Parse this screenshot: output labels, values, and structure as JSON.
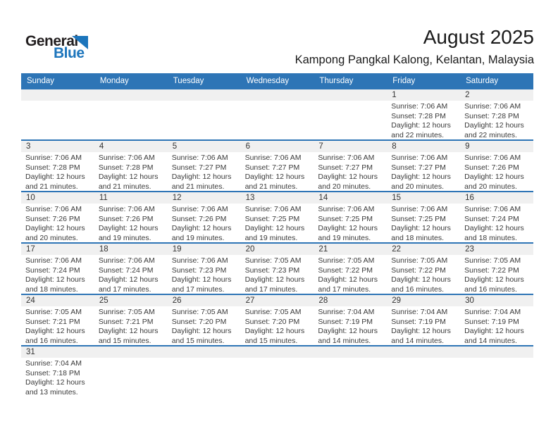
{
  "logo": {
    "general": "General",
    "blue": "Blue"
  },
  "header": {
    "title": "August 2025",
    "subtitle": "Kampong Pangkal Kalong, Kelantan, Malaysia"
  },
  "colors": {
    "accent_blue": "#2e75b6",
    "logo_blue": "#1c75bc",
    "band_gray": "#f0f0f0"
  },
  "calendar": {
    "day_headers": [
      "Sunday",
      "Monday",
      "Tuesday",
      "Wednesday",
      "Thursday",
      "Friday",
      "Saturday"
    ],
    "weeks": [
      [
        null,
        null,
        null,
        null,
        null,
        {
          "day": "1",
          "lines": [
            "Sunrise: 7:06 AM",
            "Sunset: 7:28 PM",
            "Daylight: 12 hours",
            "and 22 minutes."
          ]
        },
        {
          "day": "2",
          "lines": [
            "Sunrise: 7:06 AM",
            "Sunset: 7:28 PM",
            "Daylight: 12 hours",
            "and 22 minutes."
          ]
        }
      ],
      [
        {
          "day": "3",
          "lines": [
            "Sunrise: 7:06 AM",
            "Sunset: 7:28 PM",
            "Daylight: 12 hours",
            "and 21 minutes."
          ]
        },
        {
          "day": "4",
          "lines": [
            "Sunrise: 7:06 AM",
            "Sunset: 7:28 PM",
            "Daylight: 12 hours",
            "and 21 minutes."
          ]
        },
        {
          "day": "5",
          "lines": [
            "Sunrise: 7:06 AM",
            "Sunset: 7:27 PM",
            "Daylight: 12 hours",
            "and 21 minutes."
          ]
        },
        {
          "day": "6",
          "lines": [
            "Sunrise: 7:06 AM",
            "Sunset: 7:27 PM",
            "Daylight: 12 hours",
            "and 21 minutes."
          ]
        },
        {
          "day": "7",
          "lines": [
            "Sunrise: 7:06 AM",
            "Sunset: 7:27 PM",
            "Daylight: 12 hours",
            "and 20 minutes."
          ]
        },
        {
          "day": "8",
          "lines": [
            "Sunrise: 7:06 AM",
            "Sunset: 7:27 PM",
            "Daylight: 12 hours",
            "and 20 minutes."
          ]
        },
        {
          "day": "9",
          "lines": [
            "Sunrise: 7:06 AM",
            "Sunset: 7:26 PM",
            "Daylight: 12 hours",
            "and 20 minutes."
          ]
        }
      ],
      [
        {
          "day": "10",
          "lines": [
            "Sunrise: 7:06 AM",
            "Sunset: 7:26 PM",
            "Daylight: 12 hours",
            "and 20 minutes."
          ]
        },
        {
          "day": "11",
          "lines": [
            "Sunrise: 7:06 AM",
            "Sunset: 7:26 PM",
            "Daylight: 12 hours",
            "and 19 minutes."
          ]
        },
        {
          "day": "12",
          "lines": [
            "Sunrise: 7:06 AM",
            "Sunset: 7:26 PM",
            "Daylight: 12 hours",
            "and 19 minutes."
          ]
        },
        {
          "day": "13",
          "lines": [
            "Sunrise: 7:06 AM",
            "Sunset: 7:25 PM",
            "Daylight: 12 hours",
            "and 19 minutes."
          ]
        },
        {
          "day": "14",
          "lines": [
            "Sunrise: 7:06 AM",
            "Sunset: 7:25 PM",
            "Daylight: 12 hours",
            "and 19 minutes."
          ]
        },
        {
          "day": "15",
          "lines": [
            "Sunrise: 7:06 AM",
            "Sunset: 7:25 PM",
            "Daylight: 12 hours",
            "and 18 minutes."
          ]
        },
        {
          "day": "16",
          "lines": [
            "Sunrise: 7:06 AM",
            "Sunset: 7:24 PM",
            "Daylight: 12 hours",
            "and 18 minutes."
          ]
        }
      ],
      [
        {
          "day": "17",
          "lines": [
            "Sunrise: 7:06 AM",
            "Sunset: 7:24 PM",
            "Daylight: 12 hours",
            "and 18 minutes."
          ]
        },
        {
          "day": "18",
          "lines": [
            "Sunrise: 7:06 AM",
            "Sunset: 7:24 PM",
            "Daylight: 12 hours",
            "and 17 minutes."
          ]
        },
        {
          "day": "19",
          "lines": [
            "Sunrise: 7:06 AM",
            "Sunset: 7:23 PM",
            "Daylight: 12 hours",
            "and 17 minutes."
          ]
        },
        {
          "day": "20",
          "lines": [
            "Sunrise: 7:05 AM",
            "Sunset: 7:23 PM",
            "Daylight: 12 hours",
            "and 17 minutes."
          ]
        },
        {
          "day": "21",
          "lines": [
            "Sunrise: 7:05 AM",
            "Sunset: 7:22 PM",
            "Daylight: 12 hours",
            "and 17 minutes."
          ]
        },
        {
          "day": "22",
          "lines": [
            "Sunrise: 7:05 AM",
            "Sunset: 7:22 PM",
            "Daylight: 12 hours",
            "and 16 minutes."
          ]
        },
        {
          "day": "23",
          "lines": [
            "Sunrise: 7:05 AM",
            "Sunset: 7:22 PM",
            "Daylight: 12 hours",
            "and 16 minutes."
          ]
        }
      ],
      [
        {
          "day": "24",
          "lines": [
            "Sunrise: 7:05 AM",
            "Sunset: 7:21 PM",
            "Daylight: 12 hours",
            "and 16 minutes."
          ]
        },
        {
          "day": "25",
          "lines": [
            "Sunrise: 7:05 AM",
            "Sunset: 7:21 PM",
            "Daylight: 12 hours",
            "and 15 minutes."
          ]
        },
        {
          "day": "26",
          "lines": [
            "Sunrise: 7:05 AM",
            "Sunset: 7:20 PM",
            "Daylight: 12 hours",
            "and 15 minutes."
          ]
        },
        {
          "day": "27",
          "lines": [
            "Sunrise: 7:05 AM",
            "Sunset: 7:20 PM",
            "Daylight: 12 hours",
            "and 15 minutes."
          ]
        },
        {
          "day": "28",
          "lines": [
            "Sunrise: 7:04 AM",
            "Sunset: 7:19 PM",
            "Daylight: 12 hours",
            "and 14 minutes."
          ]
        },
        {
          "day": "29",
          "lines": [
            "Sunrise: 7:04 AM",
            "Sunset: 7:19 PM",
            "Daylight: 12 hours",
            "and 14 minutes."
          ]
        },
        {
          "day": "30",
          "lines": [
            "Sunrise: 7:04 AM",
            "Sunset: 7:19 PM",
            "Daylight: 12 hours",
            "and 14 minutes."
          ]
        }
      ],
      [
        {
          "day": "31",
          "lines": [
            "Sunrise: 7:04 AM",
            "Sunset: 7:18 PM",
            "Daylight: 12 hours",
            "and 13 minutes."
          ]
        },
        null,
        null,
        null,
        null,
        null,
        null
      ]
    ]
  }
}
